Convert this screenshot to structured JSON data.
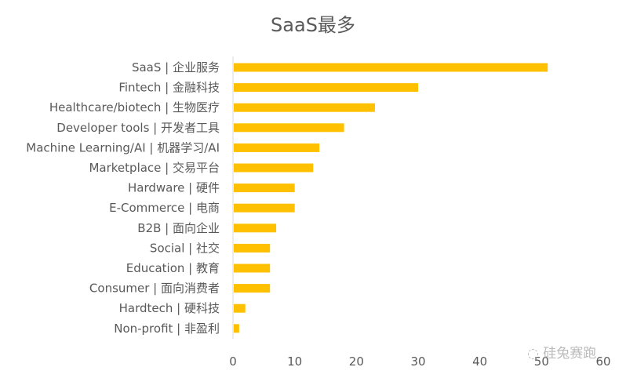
{
  "chart_data": {
    "type": "bar",
    "orientation": "horizontal",
    "title": "SaaS最多",
    "xlabel": "",
    "ylabel": "",
    "xlim": [
      0,
      60
    ],
    "xticks": [
      0,
      10,
      20,
      30,
      40,
      50,
      60
    ],
    "grid": false,
    "color": "#FFC000",
    "categories": [
      "SaaS | 企业服务",
      "Fintech | 金融科技",
      "Healthcare/biotech | 生物医疗",
      "Developer tools | 开发者工具",
      "Machine Learning/AI | 机器学习/AI",
      "Marketplace | 交易平台",
      "Hardware | 硬件",
      "E-Commerce | 电商",
      "B2B | 面向企业",
      "Social | 社交",
      "Education | 教育",
      "Consumer | 面向消费者",
      "Hardtech | 硬科技",
      "Non-profit | 非盈利"
    ],
    "values": [
      51,
      30,
      23,
      18,
      14,
      13,
      10,
      10,
      7,
      6,
      6,
      6,
      2,
      1
    ]
  },
  "watermark": "硅兔赛跑"
}
